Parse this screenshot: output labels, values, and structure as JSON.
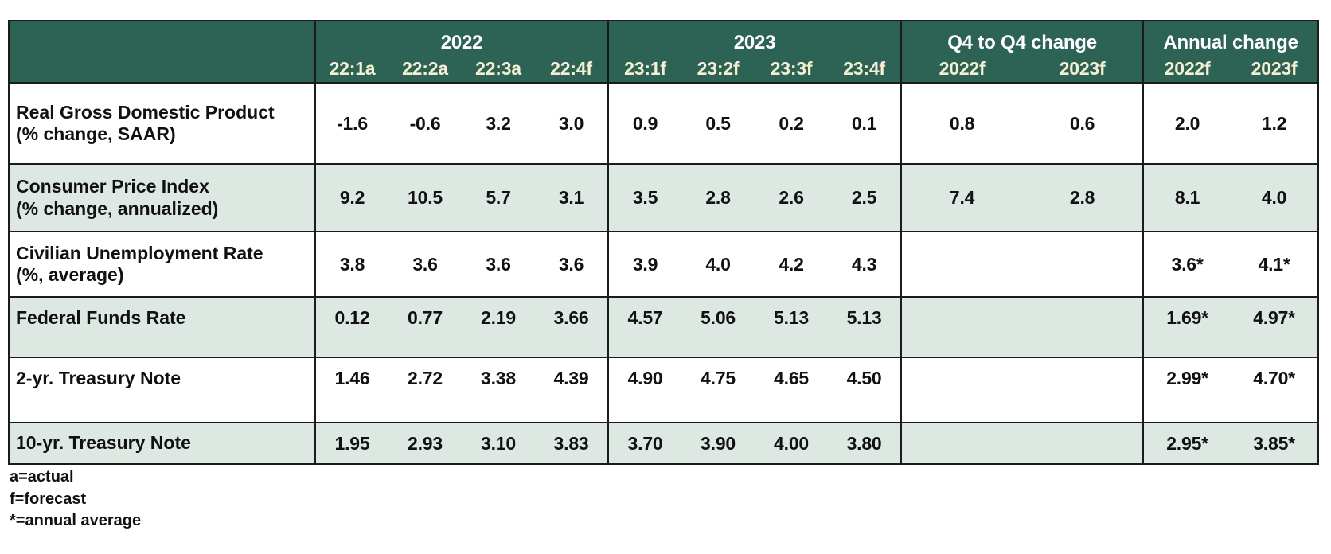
{
  "chart_data": {
    "type": "table",
    "title": "",
    "column_groups": [
      {
        "label": "2022",
        "span": 4
      },
      {
        "label": "2023",
        "span": 4
      },
      {
        "label": "Q4 to Q4 change",
        "span": 2
      },
      {
        "label": "Annual change",
        "span": 2
      }
    ],
    "columns": [
      "22:1a",
      "22:2a",
      "22:3a",
      "22:4f",
      "23:1f",
      "23:2f",
      "23:3f",
      "23:4f",
      "2022f",
      "2023f",
      "2022f",
      "2023f"
    ],
    "rows": [
      {
        "label": "Real Gross Domestic Product",
        "sublabel": "(% change, SAAR)",
        "shaded": false,
        "values": [
          "-1.6",
          "-0.6",
          "3.2",
          "3.0",
          "0.9",
          "0.5",
          "0.2",
          "0.1",
          "0.8",
          "0.6",
          "2.0",
          "1.2"
        ]
      },
      {
        "label": "Consumer Price Index",
        "sublabel": "(% change, annualized)",
        "shaded": true,
        "values": [
          "9.2",
          "10.5",
          "5.7",
          "3.1",
          "3.5",
          "2.8",
          "2.6",
          "2.5",
          "7.4",
          "2.8",
          "8.1",
          "4.0"
        ]
      },
      {
        "label": "Civilian Unemployment Rate",
        "sublabel": "(%, average)",
        "shaded": false,
        "values": [
          "3.8",
          "3.6",
          "3.6",
          "3.6",
          "3.9",
          "4.0",
          "4.2",
          "4.3",
          "",
          "",
          "3.6*",
          "4.1*"
        ]
      },
      {
        "label": "Federal Funds Rate",
        "sublabel": "",
        "shaded": true,
        "values": [
          "0.12",
          "0.77",
          "2.19",
          "3.66",
          "4.57",
          "5.06",
          "5.13",
          "5.13",
          "",
          "",
          "1.69*",
          "4.97*"
        ]
      },
      {
        "label": "2-yr. Treasury Note",
        "sublabel": "",
        "shaded": false,
        "values": [
          "1.46",
          "2.72",
          "3.38",
          "4.39",
          "4.90",
          "4.75",
          "4.65",
          "4.50",
          "",
          "",
          "2.99*",
          "4.70*"
        ]
      },
      {
        "label": "10-yr. Treasury Note",
        "sublabel": "",
        "shaded": true,
        "values": [
          "1.95",
          "2.93",
          "3.10",
          "3.83",
          "3.70",
          "3.90",
          "4.00",
          "3.80",
          "",
          "",
          "2.95*",
          "3.85*"
        ]
      }
    ],
    "footnotes": [
      "a=actual",
      "f=forecast",
      "*=annual average"
    ]
  },
  "colors": {
    "header_bg": "#2d6354",
    "header_text": "#ffffff",
    "subheader_text": "#f6efd4",
    "shaded_row_bg": "#dde8e3",
    "row_bg": "#ffffff",
    "border": "#1b1b1b",
    "body_text": "#111111"
  }
}
